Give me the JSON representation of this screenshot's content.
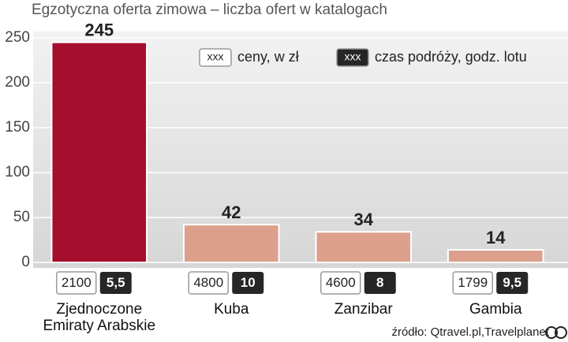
{
  "chart_data": {
    "type": "bar",
    "title": "Egzotyczna oferta zimowa – liczba ofert w katalogach",
    "categories": [
      "Zjednoczone Emiraty Arabskie",
      "Kuba",
      "Zanzibar",
      "Gambia"
    ],
    "values": [
      245,
      42,
      34,
      14
    ],
    "colors": [
      "#a50f2d",
      "#dca08c",
      "#dca08c",
      "#dca08c"
    ],
    "ylim": [
      0,
      250
    ],
    "yticks": [
      0,
      50,
      100,
      150,
      200,
      250
    ],
    "grid": true,
    "legend_sample": "xxx",
    "price": {
      "name": "ceny, w zł",
      "values": [
        2100,
        4800,
        4600,
        1799
      ],
      "color": "#ffffff"
    },
    "flight_time": {
      "name": "czas podróży, godz. lotu",
      "values": [
        5.5,
        10,
        8,
        9.5
      ],
      "value_labels": [
        "5,5",
        "10",
        "8",
        "9,5"
      ],
      "color": "#262626"
    },
    "source": "źródło: Qtravel.pl,Travelplanet"
  }
}
